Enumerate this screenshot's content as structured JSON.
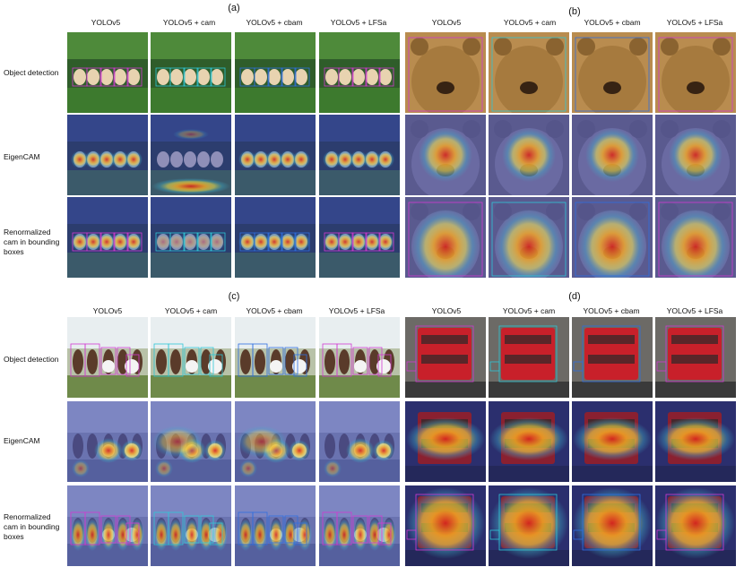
{
  "figure": {
    "panels": {
      "a": {
        "letter": "(a)",
        "columns": [
          "YOLOv5",
          "YOLOv5 + cam",
          "YOLOv5 + cbam",
          "YOLOv5 + LFSa"
        ],
        "rows": [
          [
            "Object detection"
          ],
          [
            "EigenCAM"
          ],
          [
            "Renormalized",
            "cam in bounding",
            "boxes"
          ]
        ],
        "subject": "puppies"
      },
      "b": {
        "letter": "(b)",
        "columns": [
          "YOLOv5",
          "YOLOv5 + cam",
          "YOLOv5 + cbam",
          "YOLOv5 + LFSa"
        ],
        "subject": "bear"
      },
      "c": {
        "letter": "(c)",
        "columns": [
          "YOLOv5",
          "YOLOv5 + cam",
          "YOLOv5 + cbam",
          "YOLOv5 + LFSa"
        ],
        "rows": [
          [
            "Object detection"
          ],
          [
            "EigenCAM"
          ],
          [
            "Renormalized",
            "cam in bounding",
            "boxes"
          ]
        ],
        "subject": "children"
      },
      "d": {
        "letter": "(d)",
        "columns": [
          "YOLOv5",
          "YOLOv5 + cam",
          "YOLOv5 + cbam",
          "YOLOv5 + LFSa"
        ],
        "subject": "bus"
      }
    },
    "colors": {
      "heat_hot": "#d7261e",
      "heat_warm": "#f5a623",
      "heat_mid": "#f7e84a",
      "heat_cool": "#3fb0c9",
      "heat_cold": "#3a3f9a",
      "grass": "#3d7a2e",
      "bear_fur": "#a67a3e",
      "bus_red": "#c8202a",
      "box_magenta": "#d13ad1",
      "box_cyan": "#2fc6d6",
      "box_blue": "#2f6fe0"
    }
  }
}
